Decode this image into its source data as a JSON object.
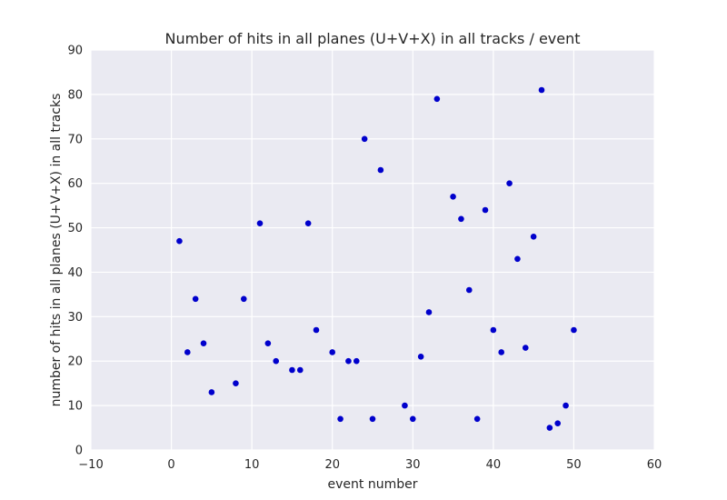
{
  "chart_data": {
    "type": "scatter",
    "title": "Number of hits in all planes (U+V+X) in all tracks / event",
    "xlabel": "event number",
    "ylabel": "number of hits in all planes (U+V+X) in all tracks",
    "xlim": [
      -10,
      60
    ],
    "ylim": [
      0,
      90
    ],
    "xticks": [
      -10,
      0,
      10,
      20,
      30,
      40,
      50,
      60
    ],
    "yticks": [
      0,
      10,
      20,
      30,
      40,
      50,
      60,
      70,
      80,
      90
    ],
    "grid": true,
    "style": {
      "background": "#eaeaf2",
      "grid_color": "#ffffff",
      "marker_color": "#0000cc"
    },
    "points": [
      [
        1,
        47
      ],
      [
        2,
        22
      ],
      [
        3,
        34
      ],
      [
        4,
        24
      ],
      [
        5,
        13
      ],
      [
        8,
        15
      ],
      [
        9,
        34
      ],
      [
        11,
        51
      ],
      [
        12,
        24
      ],
      [
        13,
        20
      ],
      [
        15,
        18
      ],
      [
        16,
        18
      ],
      [
        17,
        51
      ],
      [
        18,
        27
      ],
      [
        20,
        22
      ],
      [
        21,
        7
      ],
      [
        22,
        20
      ],
      [
        23,
        20
      ],
      [
        24,
        70
      ],
      [
        25,
        7
      ],
      [
        26,
        63
      ],
      [
        29,
        10
      ],
      [
        30,
        7
      ],
      [
        31,
        21
      ],
      [
        32,
        31
      ],
      [
        33,
        79
      ],
      [
        35,
        57
      ],
      [
        36,
        52
      ],
      [
        37,
        36
      ],
      [
        38,
        7
      ],
      [
        39,
        54
      ],
      [
        40,
        27
      ],
      [
        41,
        22
      ],
      [
        42,
        60
      ],
      [
        43,
        43
      ],
      [
        44,
        23
      ],
      [
        45,
        48
      ],
      [
        46,
        81
      ],
      [
        47,
        5
      ],
      [
        48,
        6
      ],
      [
        49,
        10
      ],
      [
        50,
        27
      ]
    ]
  }
}
